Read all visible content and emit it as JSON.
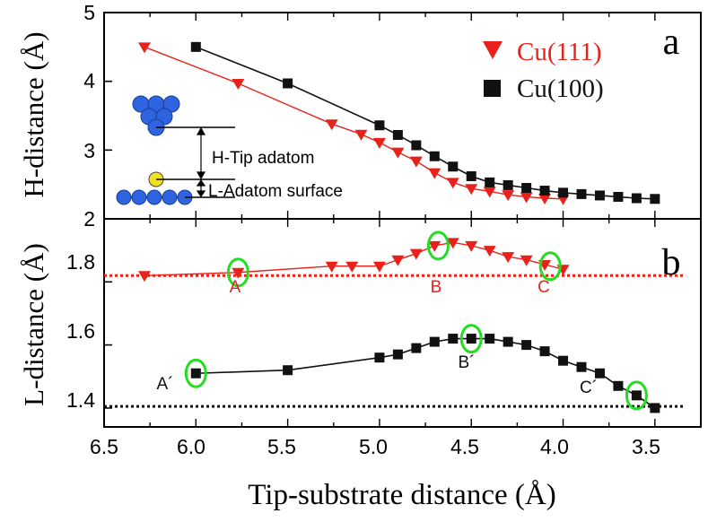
{
  "chart_data": [
    {
      "type": "line",
      "panel_label": "a",
      "ylabel": "H-distance (Å)",
      "xlim": [
        6.5,
        3.25
      ],
      "ylim": [
        2,
        5
      ],
      "y_ticks": [
        "2",
        "3",
        "4",
        "5"
      ],
      "legend": {
        "placement": "top-right"
      },
      "series": [
        {
          "name": "Cu(111)",
          "color": "#e8221b",
          "marker": "triangle-down",
          "x": [
            6.28,
            5.77,
            5.26,
            5.1,
            5.0,
            4.9,
            4.8,
            4.7,
            4.6,
            4.5,
            4.4,
            4.3,
            4.2,
            4.1,
            4.0
          ],
          "y": [
            4.5,
            3.97,
            3.38,
            3.23,
            3.11,
            2.97,
            2.84,
            2.67,
            2.53,
            2.44,
            2.4,
            2.35,
            2.32,
            2.3,
            2.29
          ]
        },
        {
          "name": "Cu(100)",
          "color": "#111111",
          "marker": "square",
          "x": [
            6.0,
            5.5,
            5.0,
            4.9,
            4.8,
            4.7,
            4.6,
            4.5,
            4.4,
            4.3,
            4.2,
            4.1,
            4.0,
            3.9,
            3.8,
            3.7,
            3.6,
            3.5
          ],
          "y": [
            4.5,
            3.97,
            3.36,
            3.22,
            3.07,
            2.91,
            2.76,
            2.62,
            2.53,
            2.49,
            2.45,
            2.41,
            2.38,
            2.36,
            2.34,
            2.32,
            2.3,
            2.29
          ]
        }
      ],
      "inset": {
        "labels": [
          "H-Tip adatom",
          "L-Adatom surface"
        ],
        "tip_atom_color": "#2f64e0",
        "adatom_color": "#f2e21a"
      }
    },
    {
      "type": "line",
      "panel_label": "b",
      "ylabel": "L-distance (Å)",
      "xlabel": "Tip-substrate distance (Å)",
      "xlim": [
        6.5,
        3.25
      ],
      "ylim": [
        1.34,
        2.0
      ],
      "y_ticks": [
        "1.4",
        "1.6",
        "1.8",
        "2"
      ],
      "x_ticks": [
        "6.5",
        "6.0",
        "5.5",
        "5.0",
        "4.5",
        "4.0",
        "3.5"
      ],
      "series": [
        {
          "name": "Cu(111)",
          "color": "#e8221b",
          "marker": "triangle-down",
          "x": [
            6.28,
            5.77,
            5.26,
            5.15,
            5.0,
            4.9,
            4.8,
            4.7,
            4.6,
            4.5,
            4.4,
            4.3,
            4.2,
            4.1,
            4.0
          ],
          "y": [
            1.82,
            1.83,
            1.85,
            1.85,
            1.85,
            1.87,
            1.89,
            1.915,
            1.925,
            1.915,
            1.9,
            1.88,
            1.87,
            1.855,
            1.84
          ]
        },
        {
          "name": "Cu(100)",
          "color": "#111111",
          "marker": "square",
          "x": [
            6.0,
            5.5,
            5.0,
            4.9,
            4.8,
            4.7,
            4.6,
            4.5,
            4.4,
            4.3,
            4.2,
            4.1,
            4.0,
            3.9,
            3.8,
            3.7,
            3.6,
            3.5
          ],
          "y": [
            1.51,
            1.52,
            1.56,
            1.57,
            1.59,
            1.61,
            1.62,
            1.62,
            1.62,
            1.61,
            1.6,
            1.58,
            1.55,
            1.53,
            1.51,
            1.47,
            1.44,
            1.4
          ]
        }
      ],
      "reference_lines": [
        {
          "y": 1.82,
          "color": "#e8221b",
          "style": "dotted"
        },
        {
          "y": 1.405,
          "color": "#111111",
          "style": "dotted"
        }
      ],
      "annotations": [
        {
          "text": "A",
          "x": 5.77,
          "y": 1.83,
          "color": "#e8221b"
        },
        {
          "text": "B",
          "x": 4.68,
          "y": 1.915,
          "color": "#e8221b"
        },
        {
          "text": "C",
          "x": 4.07,
          "y": 1.85,
          "color": "#e8221b"
        },
        {
          "text": "A´",
          "x": 6.0,
          "y": 1.51,
          "color": "#111111"
        },
        {
          "text": "B´",
          "x": 4.5,
          "y": 1.62,
          "color": "#111111"
        },
        {
          "text": "C´",
          "x": 3.6,
          "y": 1.44,
          "color": "#111111"
        }
      ],
      "highlight_color": "#22dd22"
    }
  ]
}
